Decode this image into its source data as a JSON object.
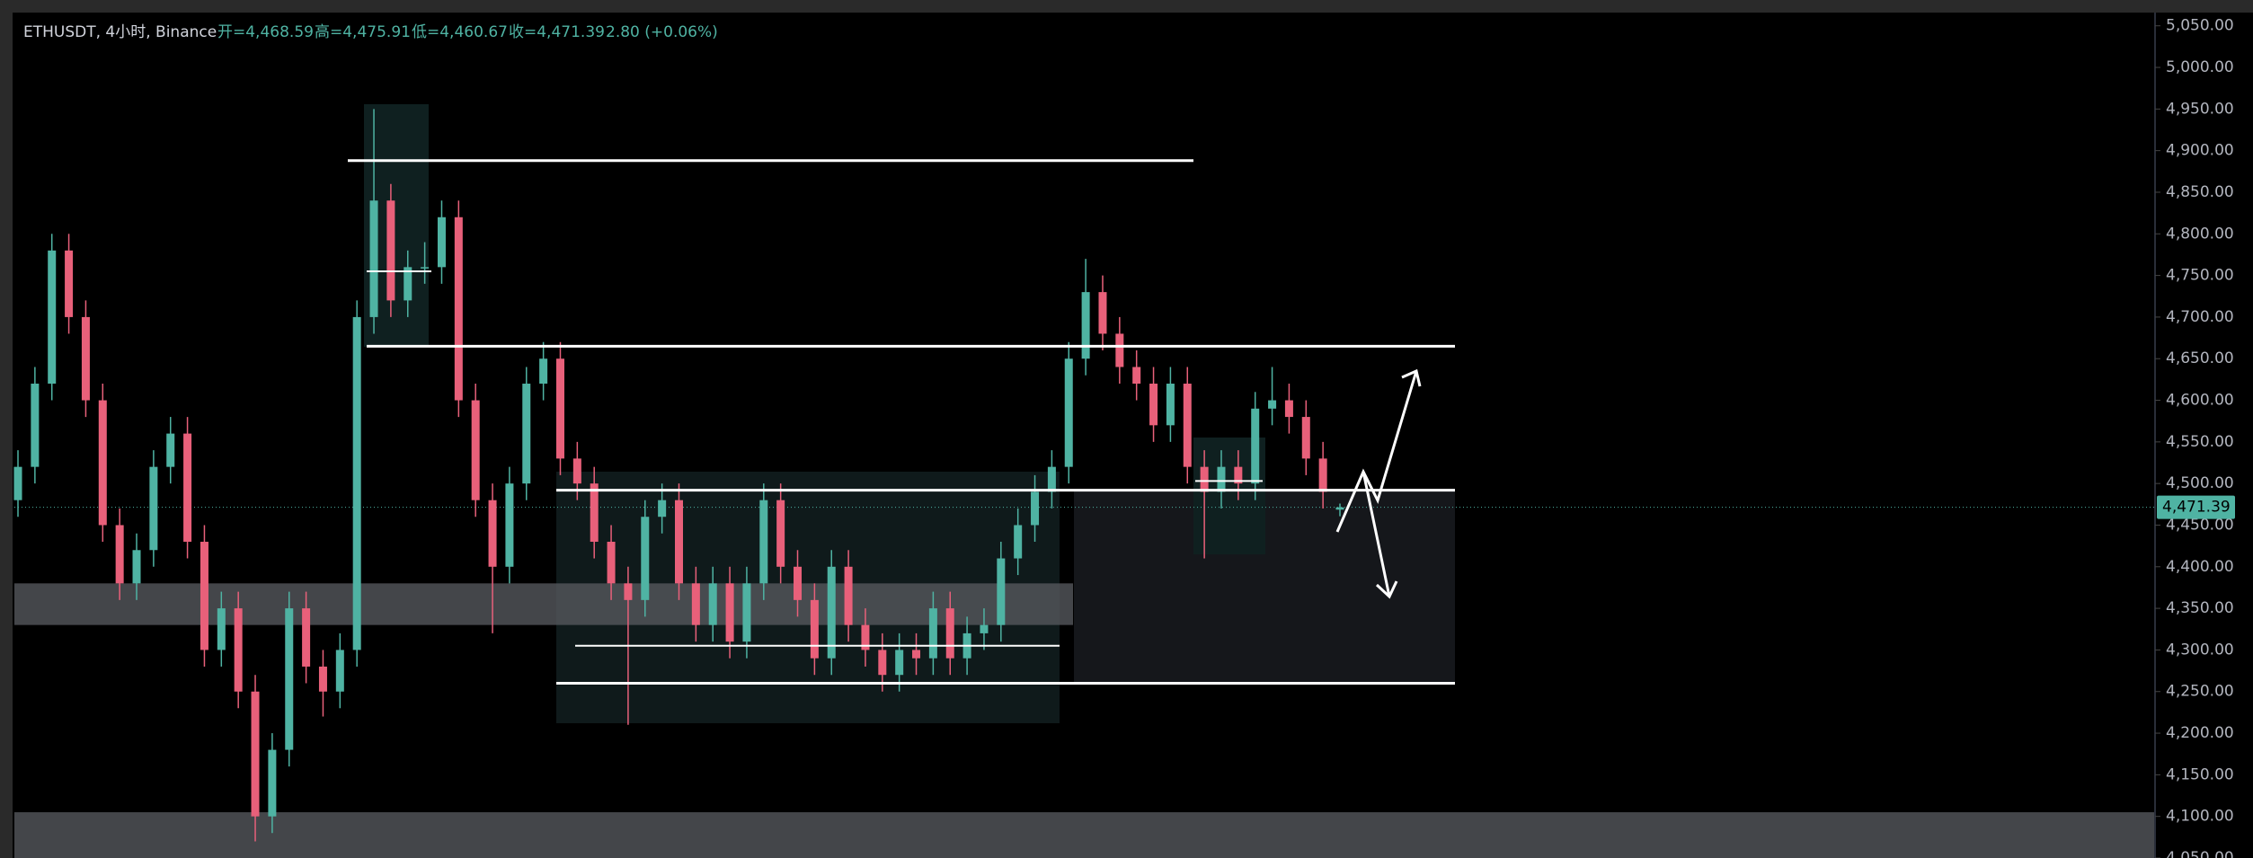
{
  "chart_data": {
    "type": "candlestick",
    "title": "ETHUSDT, 4小时, Binance",
    "header_values": [
      "开=4,468.59",
      "高=4,475.91",
      "低=4,460.67",
      "收=4,471.39",
      "2.80 (+0.06%)"
    ],
    "ylim": [
      4050,
      5081
    ],
    "yticks": [
      {
        "value": 4050,
        "label": "4,050.00"
      },
      {
        "value": 4100,
        "label": "4,100.00"
      },
      {
        "value": 4150,
        "label": "4,150.00"
      },
      {
        "value": 4200,
        "label": "4,200.00"
      },
      {
        "value": 4250,
        "label": "4,250.00"
      },
      {
        "value": 4300,
        "label": "4,300.00"
      },
      {
        "value": 4350,
        "label": "4,350.00"
      },
      {
        "value": 4400,
        "label": "4,400.00"
      },
      {
        "value": 4450,
        "label": "4,450.00"
      },
      {
        "value": 4500,
        "label": "4,500.00"
      },
      {
        "value": 4550,
        "label": "4,550.00"
      },
      {
        "value": 4600,
        "label": "4,600.00"
      },
      {
        "value": 4650,
        "label": "4,650.00"
      },
      {
        "value": 4700,
        "label": "4,700.00"
      },
      {
        "value": 4750,
        "label": "4,750.00"
      },
      {
        "value": 4800,
        "label": "4,800.00"
      },
      {
        "value": 4850,
        "label": "4,850.00"
      },
      {
        "value": 4900,
        "label": "4,900.00"
      },
      {
        "value": 4950,
        "label": "4,950.00"
      },
      {
        "value": 5000,
        "label": "5,000.00"
      },
      {
        "value": 5050,
        "label": "5,050.00"
      }
    ],
    "current_price": {
      "value": 4471.39,
      "label": "4,471.39"
    },
    "up_color": "#4fb3a3",
    "down_color": "#e8607a",
    "levels": [
      4888,
      4665,
      4492,
      4260,
      4305,
      4755,
      4503
    ],
    "zones": [
      [
        4330,
        4380
      ],
      [
        4050,
        4105
      ]
    ],
    "candles": [
      [
        4480,
        4540,
        4460,
        4520
      ],
      [
        4520,
        4640,
        4500,
        4620
      ],
      [
        4620,
        4800,
        4600,
        4780
      ],
      [
        4780,
        4800,
        4680,
        4700
      ],
      [
        4700,
        4720,
        4580,
        4600
      ],
      [
        4600,
        4620,
        4430,
        4450
      ],
      [
        4450,
        4470,
        4360,
        4380
      ],
      [
        4380,
        4440,
        4360,
        4420
      ],
      [
        4420,
        4540,
        4400,
        4520
      ],
      [
        4520,
        4580,
        4500,
        4560
      ],
      [
        4560,
        4580,
        4410,
        4430
      ],
      [
        4430,
        4450,
        4280,
        4300
      ],
      [
        4300,
        4370,
        4280,
        4350
      ],
      [
        4350,
        4370,
        4230,
        4250
      ],
      [
        4250,
        4270,
        4070,
        4100
      ],
      [
        4100,
        4200,
        4080,
        4180
      ],
      [
        4180,
        4370,
        4160,
        4350
      ],
      [
        4350,
        4370,
        4260,
        4280
      ],
      [
        4280,
        4300,
        4220,
        4250
      ],
      [
        4250,
        4320,
        4230,
        4300
      ],
      [
        4300,
        4720,
        4280,
        4700
      ],
      [
        4700,
        4950,
        4680,
        4840
      ],
      [
        4840,
        4860,
        4700,
        4720
      ],
      [
        4720,
        4780,
        4700,
        4760
      ],
      [
        4760,
        4790,
        4740,
        4760
      ],
      [
        4760,
        4840,
        4740,
        4820
      ],
      [
        4820,
        4840,
        4580,
        4600
      ],
      [
        4600,
        4620,
        4460,
        4480
      ],
      [
        4480,
        4500,
        4320,
        4400
      ],
      [
        4400,
        4520,
        4380,
        4500
      ],
      [
        4500,
        4640,
        4480,
        4620
      ],
      [
        4620,
        4670,
        4600,
        4650
      ],
      [
        4650,
        4670,
        4510,
        4530
      ],
      [
        4530,
        4550,
        4480,
        4500
      ],
      [
        4500,
        4520,
        4410,
        4430
      ],
      [
        4430,
        4450,
        4360,
        4380
      ],
      [
        4380,
        4400,
        4210,
        4360
      ],
      [
        4360,
        4480,
        4340,
        4460
      ],
      [
        4460,
        4500,
        4440,
        4480
      ],
      [
        4480,
        4500,
        4360,
        4380
      ],
      [
        4380,
        4400,
        4310,
        4330
      ],
      [
        4330,
        4400,
        4310,
        4380
      ],
      [
        4380,
        4400,
        4290,
        4310
      ],
      [
        4310,
        4400,
        4290,
        4380
      ],
      [
        4380,
        4500,
        4360,
        4480
      ],
      [
        4480,
        4500,
        4380,
        4400
      ],
      [
        4400,
        4420,
        4340,
        4360
      ],
      [
        4360,
        4380,
        4270,
        4290
      ],
      [
        4290,
        4420,
        4270,
        4400
      ],
      [
        4400,
        4420,
        4310,
        4330
      ],
      [
        4330,
        4350,
        4280,
        4300
      ],
      [
        4300,
        4320,
        4250,
        4270
      ],
      [
        4270,
        4320,
        4250,
        4300
      ],
      [
        4300,
        4320,
        4270,
        4290
      ],
      [
        4290,
        4370,
        4270,
        4350
      ],
      [
        4350,
        4370,
        4270,
        4290
      ],
      [
        4290,
        4340,
        4270,
        4320
      ],
      [
        4320,
        4350,
        4300,
        4330
      ],
      [
        4330,
        4430,
        4310,
        4410
      ],
      [
        4410,
        4470,
        4390,
        4450
      ],
      [
        4450,
        4510,
        4430,
        4490
      ],
      [
        4490,
        4540,
        4470,
        4520
      ],
      [
        4520,
        4670,
        4500,
        4650
      ],
      [
        4650,
        4770,
        4630,
        4730
      ],
      [
        4730,
        4750,
        4660,
        4680
      ],
      [
        4680,
        4700,
        4620,
        4640
      ],
      [
        4640,
        4660,
        4600,
        4620
      ],
      [
        4620,
        4640,
        4550,
        4570
      ],
      [
        4570,
        4640,
        4550,
        4620
      ],
      [
        4620,
        4640,
        4500,
        4520
      ],
      [
        4520,
        4540,
        4410,
        4490
      ],
      [
        4490,
        4540,
        4470,
        4520
      ],
      [
        4520,
        4540,
        4480,
        4500
      ],
      [
        4500,
        4610,
        4480,
        4590
      ],
      [
        4590,
        4640,
        4570,
        4600
      ],
      [
        4600,
        4620,
        4560,
        4580
      ],
      [
        4580,
        4600,
        4510,
        4530
      ],
      [
        4530,
        4550,
        4470,
        4490
      ],
      [
        4468.59,
        4475.91,
        4460.67,
        4471.39
      ]
    ]
  }
}
